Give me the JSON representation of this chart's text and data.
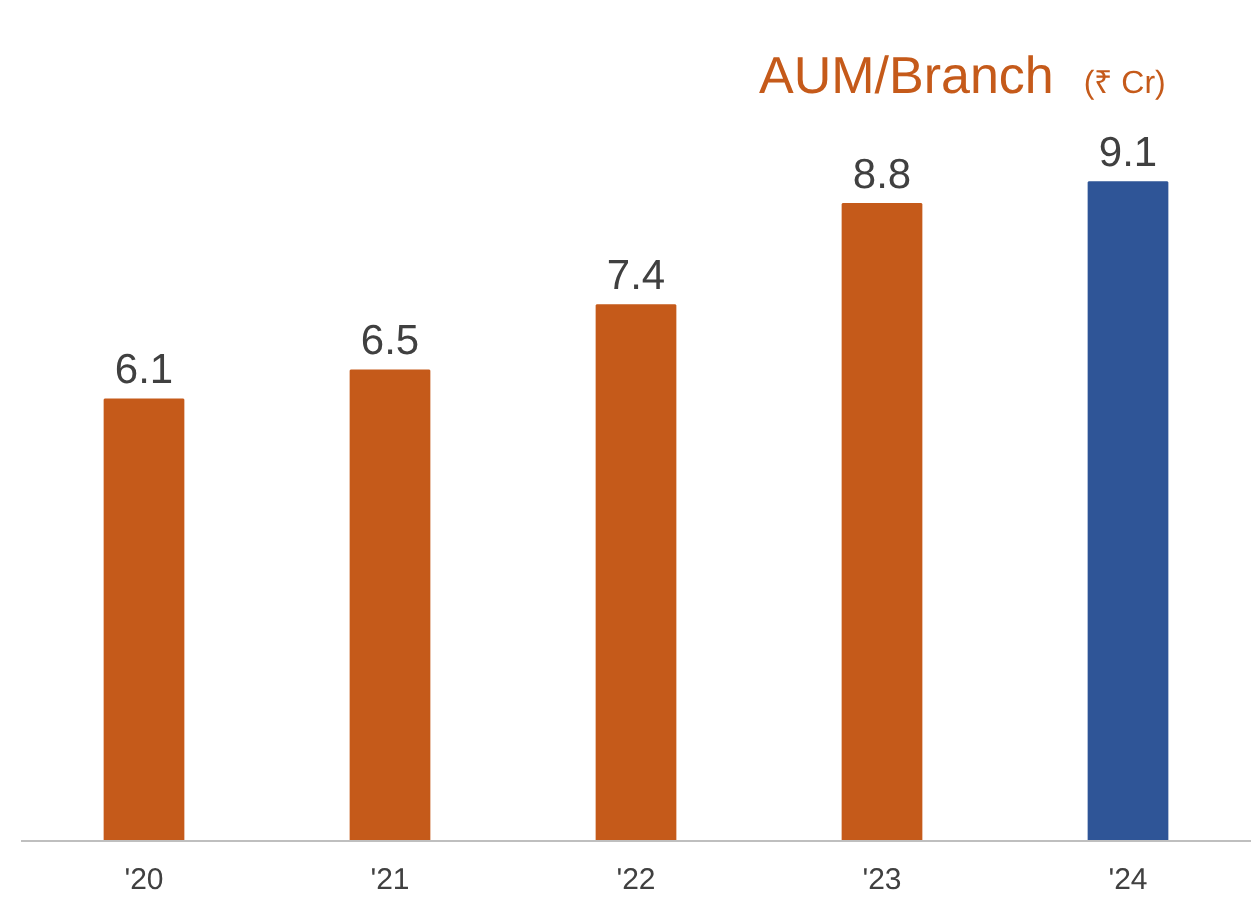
{
  "chart_data": {
    "type": "bar",
    "title": "AUM/Branch",
    "subtitle": "(₹ Cr)",
    "categories": [
      "'20",
      "'21",
      "'22",
      "'23",
      "'24"
    ],
    "values": [
      6.1,
      6.5,
      7.4,
      8.8,
      9.1
    ],
    "colors": [
      "#c55a1a",
      "#c55a1a",
      "#c55a1a",
      "#c55a1a",
      "#2f5597"
    ],
    "data_labels": true
  }
}
